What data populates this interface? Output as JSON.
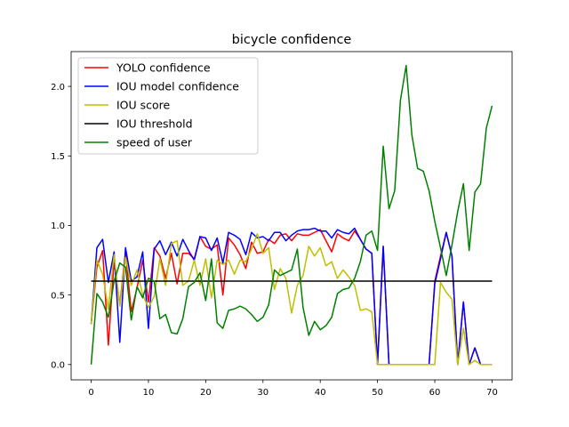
{
  "chart_data": {
    "type": "line",
    "title": "bicycle confidence",
    "xlabel": "",
    "ylabel": "",
    "xlim": [
      -3.5,
      73.5
    ],
    "ylim": [
      -0.11,
      2.25
    ],
    "xticks": [
      0,
      10,
      20,
      30,
      40,
      50,
      60,
      70
    ],
    "yticks": [
      0.0,
      0.5,
      1.0,
      1.5,
      2.0
    ],
    "xtick_labels": [
      "0",
      "10",
      "20",
      "30",
      "40",
      "50",
      "60",
      "70"
    ],
    "ytick_labels": [
      "0.0",
      "0.5",
      "1.0",
      "1.5",
      "2.0"
    ],
    "grid": false,
    "legend_position": "top-left",
    "series": [
      {
        "name": "YOLO confidence",
        "color": "#ff0000",
        "x": [
          0,
          1,
          2,
          3,
          4,
          5,
          6,
          7,
          8,
          9,
          10,
          11,
          12,
          13,
          14,
          15,
          16,
          17,
          18,
          19,
          20,
          21,
          22,
          23,
          24,
          25,
          26,
          27,
          28,
          29,
          30,
          31,
          32,
          33,
          34,
          35,
          36,
          37,
          38,
          39,
          40,
          41,
          42,
          43,
          44,
          45,
          46,
          47,
          48,
          49,
          50,
          51,
          52,
          53,
          54,
          55,
          56,
          57,
          58,
          59,
          60,
          61,
          62,
          63,
          64,
          65,
          66,
          67,
          68,
          69,
          70
        ],
        "values": [
          0.29,
          0.7,
          0.82,
          0.14,
          0.74,
          0.43,
          0.81,
          0.38,
          0.55,
          0.75,
          0.45,
          0.84,
          0.78,
          0.62,
          0.8,
          0.58,
          0.8,
          0.8,
          0.76,
          0.92,
          0.85,
          0.83,
          0.86,
          0.5,
          0.91,
          0.86,
          0.79,
          0.69,
          0.88,
          0.8,
          0.81,
          0.9,
          0.87,
          0.93,
          0.94,
          0.89,
          0.94,
          0.93,
          0.93,
          0.95,
          0.97,
          0.89,
          0.81,
          0.94,
          0.91,
          0.89,
          0.96,
          0.9,
          0.83,
          0.8,
          0.0,
          0.85,
          0.0,
          0.0,
          0.0,
          0.0,
          0.0,
          0.0,
          0.0,
          0.0,
          0.6,
          0.78,
          0.95,
          0.78,
          0.0,
          0.45,
          0.0,
          0.12,
          0.0,
          0.0,
          0.0
        ]
      },
      {
        "name": "IOU model confidence",
        "color": "#0000ff",
        "x": [
          0,
          1,
          2,
          3,
          4,
          5,
          6,
          7,
          8,
          9,
          10,
          11,
          12,
          13,
          14,
          15,
          16,
          17,
          18,
          19,
          20,
          21,
          22,
          23,
          24,
          25,
          26,
          27,
          28,
          29,
          30,
          31,
          32,
          33,
          34,
          35,
          36,
          37,
          38,
          39,
          40,
          41,
          42,
          43,
          44,
          45,
          46,
          47,
          48,
          49,
          50,
          51,
          52,
          53,
          54,
          55,
          56,
          57,
          58,
          59,
          60,
          61,
          62,
          63,
          64,
          65,
          66,
          67,
          68,
          69,
          70
        ],
        "values": [
          0.29,
          0.84,
          0.9,
          0.59,
          0.81,
          0.16,
          0.84,
          0.6,
          0.63,
          0.81,
          0.26,
          0.83,
          0.89,
          0.79,
          0.88,
          0.78,
          0.9,
          0.82,
          0.75,
          0.92,
          0.91,
          0.82,
          0.91,
          0.73,
          0.95,
          0.93,
          0.9,
          0.79,
          0.95,
          0.91,
          0.92,
          0.89,
          0.95,
          0.95,
          0.89,
          0.93,
          0.96,
          0.97,
          0.97,
          0.98,
          0.96,
          0.96,
          0.91,
          0.97,
          0.95,
          0.94,
          0.98,
          0.9,
          0.83,
          0.8,
          0.0,
          0.85,
          0.0,
          0.0,
          0.0,
          0.0,
          0.0,
          0.0,
          0.0,
          0.0,
          0.58,
          0.76,
          0.95,
          0.78,
          0.0,
          0.45,
          0.0,
          0.12,
          0.0,
          0.0,
          0.0
        ]
      },
      {
        "name": "IOU score",
        "color": "#bfbf00",
        "x": [
          0,
          1,
          2,
          3,
          4,
          5,
          6,
          7,
          8,
          9,
          10,
          11,
          12,
          13,
          14,
          15,
          16,
          17,
          18,
          19,
          20,
          21,
          22,
          23,
          24,
          25,
          26,
          27,
          28,
          29,
          30,
          31,
          32,
          33,
          34,
          35,
          36,
          37,
          38,
          39,
          40,
          41,
          42,
          43,
          44,
          45,
          46,
          47,
          48,
          49,
          50,
          51,
          52,
          53,
          54,
          55,
          56,
          57,
          58,
          59,
          60,
          61,
          62,
          63,
          64,
          65,
          66,
          67,
          68,
          69,
          70
        ],
        "values": [
          0.29,
          0.75,
          0.65,
          0.4,
          0.79,
          0.42,
          0.77,
          0.57,
          0.68,
          0.5,
          0.41,
          0.49,
          0.76,
          0.57,
          0.87,
          0.89,
          0.57,
          0.6,
          0.75,
          0.57,
          0.76,
          0.48,
          0.75,
          0.72,
          0.75,
          0.65,
          0.75,
          0.74,
          0.83,
          0.94,
          0.8,
          0.84,
          0.54,
          0.69,
          0.62,
          0.37,
          0.57,
          0.64,
          0.85,
          0.78,
          0.84,
          0.71,
          0.74,
          0.62,
          0.68,
          0.63,
          0.57,
          0.39,
          0.4,
          0.38,
          0.0,
          0.0,
          0.0,
          0.0,
          0.0,
          0.0,
          0.0,
          0.0,
          0.0,
          0.0,
          0.0,
          0.59,
          0.52,
          0.47,
          0.0,
          0.26,
          0.0,
          0.03,
          0.0,
          0.0,
          0.0
        ]
      },
      {
        "name": "IOU threshold",
        "color": "#000000",
        "x": [
          0,
          70
        ],
        "values": [
          0.6,
          0.6
        ]
      },
      {
        "name": "speed of user",
        "color": "#008000",
        "x": [
          0,
          1,
          2,
          3,
          4,
          5,
          6,
          7,
          8,
          9,
          10,
          11,
          12,
          13,
          14,
          15,
          16,
          17,
          18,
          19,
          20,
          21,
          22,
          23,
          24,
          25,
          26,
          27,
          28,
          29,
          30,
          31,
          32,
          33,
          34,
          35,
          36,
          37,
          38,
          39,
          40,
          41,
          42,
          43,
          44,
          45,
          46,
          47,
          48,
          49,
          50,
          51,
          52,
          53,
          54,
          55,
          56,
          57,
          58,
          59,
          60,
          61,
          62,
          63,
          64,
          65,
          66,
          67,
          68,
          69,
          70
        ],
        "values": [
          0.0,
          0.51,
          0.45,
          0.34,
          0.6,
          0.73,
          0.7,
          0.32,
          0.56,
          0.48,
          0.62,
          0.6,
          0.33,
          0.36,
          0.23,
          0.22,
          0.33,
          0.56,
          0.59,
          0.66,
          0.46,
          0.76,
          0.3,
          0.26,
          0.39,
          0.4,
          0.42,
          0.4,
          0.36,
          0.31,
          0.34,
          0.43,
          0.68,
          0.64,
          0.66,
          0.68,
          0.83,
          0.41,
          0.21,
          0.31,
          0.25,
          0.28,
          0.34,
          0.51,
          0.54,
          0.55,
          0.62,
          0.74,
          0.93,
          0.96,
          0.82,
          1.57,
          1.12,
          1.25,
          1.9,
          2.15,
          1.65,
          1.41,
          1.39,
          1.25,
          1.03,
          0.84,
          0.64,
          0.86,
          1.1,
          1.3,
          0.82,
          1.24,
          1.3,
          1.7,
          1.86
        ]
      }
    ]
  }
}
